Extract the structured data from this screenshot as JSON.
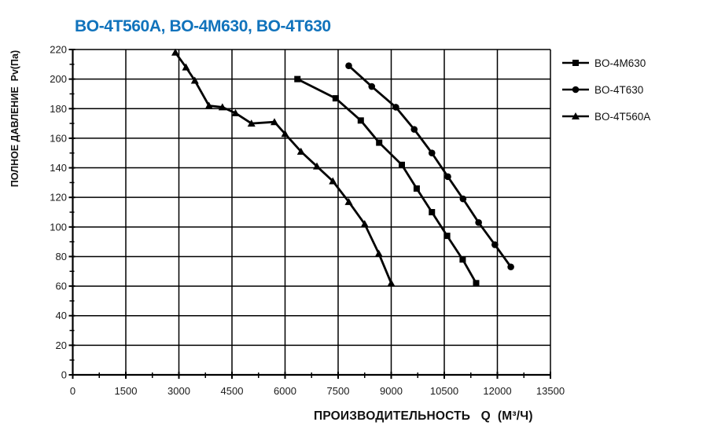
{
  "page": {
    "background": "#FFFFFF"
  },
  "chart": {
    "title": "BO-4T560A, BO-4M630, BO-4T630",
    "title_color": "#1173BC",
    "y_axis_title": "ПОЛНОЕ ДАВЛЕНИЕ  Pv(Па)",
    "x_axis_title": "ПРОИЗВОДИТЕЛЬНОСТЬ   Q  (М³/Ч)"
  },
  "chart_data": {
    "type": "line",
    "title": "BO-4T560A, BO-4M630, BO-4T630",
    "xlabel": "ПРОИЗВОДИТЕЛЬНОСТЬ Q (М³/Ч)",
    "ylabel": "ПОЛНОЕ ДАВЛЕНИЕ Pv(Па)",
    "xlim": [
      0,
      13500
    ],
    "ylim": [
      0,
      220
    ],
    "x_ticks": [
      0,
      1500,
      3000,
      4500,
      6000,
      7500,
      9000,
      10500,
      12000,
      13500
    ],
    "x_minor_tick_step": 750,
    "y_ticks": [
      0,
      20,
      40,
      60,
      80,
      100,
      120,
      140,
      160,
      180,
      200,
      220
    ],
    "y_minor_tick_step": 10,
    "grid": true,
    "legend_position": "right",
    "series_color": "#000000",
    "series": [
      {
        "name": "BO-4M630",
        "marker": "square",
        "points": [
          [
            6350,
            200
          ],
          [
            7430,
            187
          ],
          [
            8140,
            172
          ],
          [
            8660,
            157
          ],
          [
            9300,
            142
          ],
          [
            9720,
            126
          ],
          [
            10150,
            110
          ],
          [
            10580,
            94
          ],
          [
            11020,
            78
          ],
          [
            11400,
            62
          ]
        ]
      },
      {
        "name": "BO-4T630",
        "marker": "circle",
        "points": [
          [
            7800,
            209
          ],
          [
            8450,
            195
          ],
          [
            9130,
            181
          ],
          [
            9650,
            166
          ],
          [
            10150,
            150
          ],
          [
            10600,
            134
          ],
          [
            11030,
            119
          ],
          [
            11470,
            103
          ],
          [
            11930,
            88
          ],
          [
            12380,
            73
          ]
        ]
      },
      {
        "name": "BO-4T560A",
        "marker": "triangle",
        "points": [
          [
            2900,
            218
          ],
          [
            3200,
            208
          ],
          [
            3450,
            199
          ],
          [
            3850,
            182
          ],
          [
            4230,
            181
          ],
          [
            4600,
            177
          ],
          [
            5050,
            170
          ],
          [
            5700,
            171
          ],
          [
            6000,
            163
          ],
          [
            6450,
            151
          ],
          [
            6900,
            141
          ],
          [
            7350,
            131
          ],
          [
            7800,
            117
          ],
          [
            8250,
            102
          ],
          [
            8650,
            82
          ],
          [
            9000,
            62
          ]
        ]
      }
    ]
  }
}
